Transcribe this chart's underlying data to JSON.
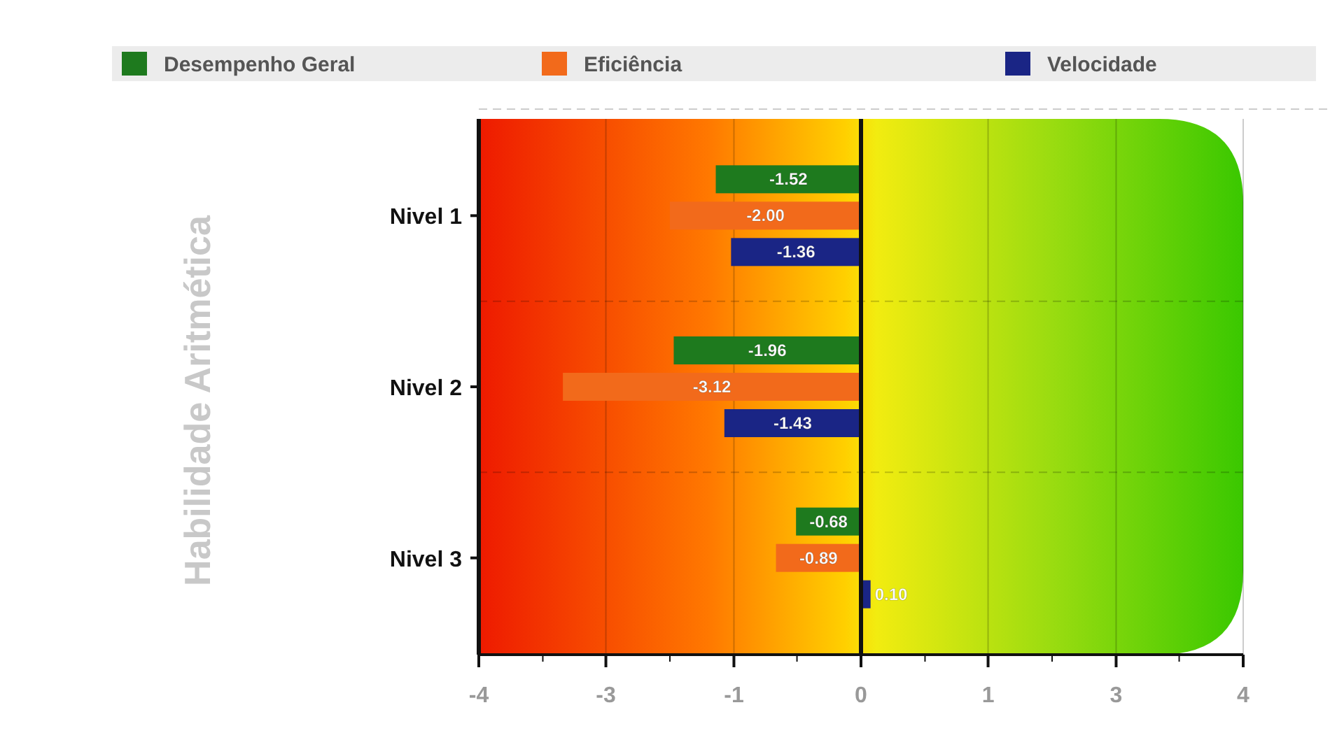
{
  "chart_data": {
    "type": "bar",
    "orientation": "horizontal",
    "ylabel": "Habilidade Aritmética",
    "categories": [
      "Nivel 1",
      "Nivel 2",
      "Nivel 3"
    ],
    "series": [
      {
        "name": "Desempenho Geral",
        "color": "#1e7a1e",
        "values": [
          -1.52,
          -1.96,
          -0.68
        ],
        "value_labels": [
          "-1.52",
          "-1.96",
          "-0.68"
        ]
      },
      {
        "name": "Eficiência",
        "color": "#f26a1b",
        "values": [
          -2.0,
          -3.12,
          -0.89
        ],
        "value_labels": [
          "-2.00",
          "-3.12",
          "-0.89"
        ]
      },
      {
        "name": "Velocidade",
        "color": "#1a2585",
        "values": [
          -1.36,
          -1.43,
          0.1
        ],
        "value_labels": [
          "-1.36",
          "-1.43",
          "0.10"
        ]
      }
    ],
    "xlim": [
      -4,
      4
    ],
    "xticks": [
      -4,
      {
        "value": -3.33,
        "label": null
      },
      {
        "value": -2.67,
        "label": "-3"
      },
      {
        "value": -2,
        "label": null
      },
      {
        "value": -1.33,
        "label": "-1"
      },
      {
        "value": -0.67,
        "label": null
      },
      0,
      {
        "value": 0.67,
        "label": null
      },
      {
        "value": 1.33,
        "label": "1"
      },
      {
        "value": 2,
        "label": null
      },
      {
        "value": 2.67,
        "label": "3"
      },
      {
        "value": 3.33,
        "label": null
      },
      4
    ],
    "grid": true,
    "legend": "top"
  }
}
